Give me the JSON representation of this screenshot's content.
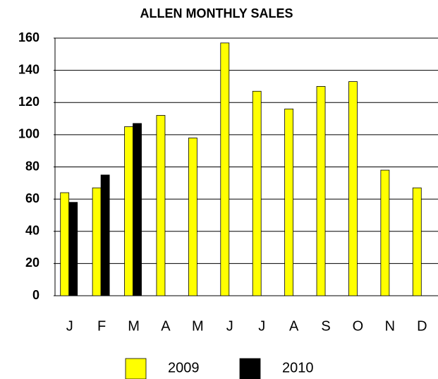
{
  "chart_data": {
    "type": "bar",
    "title": "ALLEN MONTHLY SALES",
    "categories": [
      "J",
      "F",
      "M",
      "A",
      "M",
      "J",
      "J",
      "A",
      "S",
      "O",
      "N",
      "D"
    ],
    "series": [
      {
        "name": "2009",
        "color": "#ffff00",
        "values": [
          64,
          67,
          105,
          112,
          98,
          157,
          127,
          116,
          130,
          133,
          78,
          67
        ]
      },
      {
        "name": "2010",
        "color": "#000000",
        "values": [
          58,
          75,
          107,
          null,
          null,
          null,
          null,
          null,
          null,
          null,
          null,
          null
        ]
      }
    ],
    "ylim": [
      0,
      160
    ],
    "yticks": [
      0,
      20,
      40,
      60,
      80,
      100,
      120,
      140,
      160
    ],
    "grid": true,
    "legend": "bottom"
  }
}
